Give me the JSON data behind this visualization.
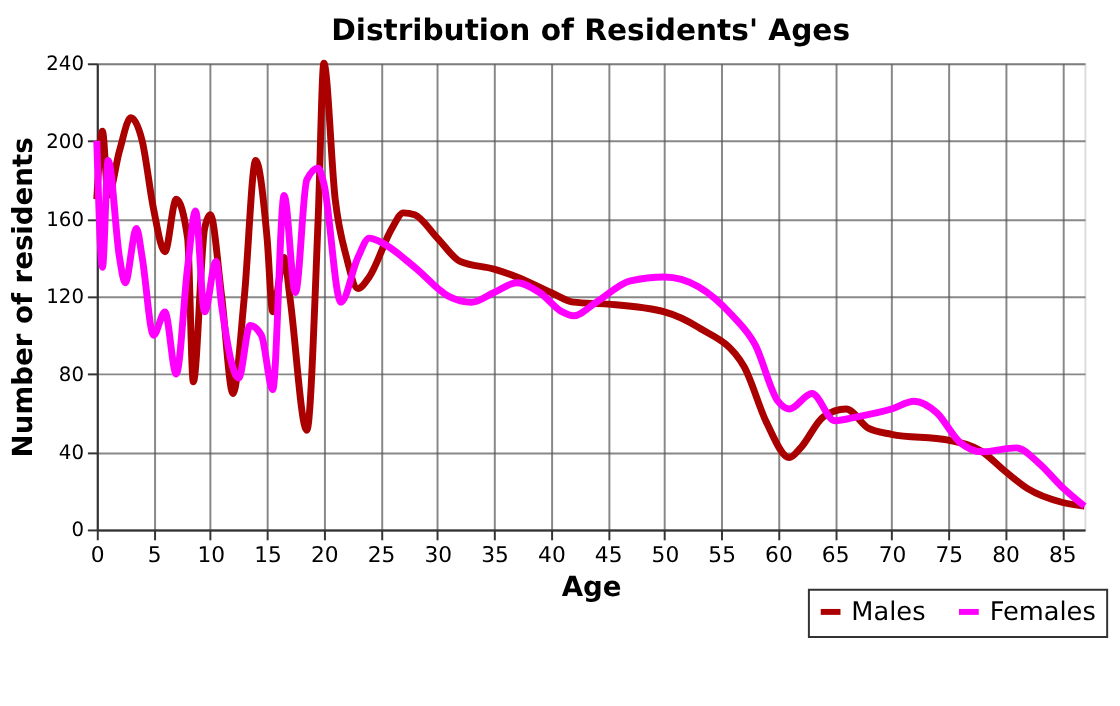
{
  "chart_data": {
    "type": "line",
    "title": "Distribution of Residents' Ages",
    "xlabel": "Age",
    "ylabel": "Number of residents",
    "xlim": [
      0,
      87
    ],
    "xticks": [
      0,
      5,
      10,
      15,
      20,
      25,
      30,
      35,
      40,
      45,
      50,
      55,
      60,
      65,
      70,
      75,
      80,
      85
    ],
    "ylim": [
      0,
      240
    ],
    "yticks": [
      0,
      40,
      80,
      120,
      160,
      200,
      240
    ],
    "grid": true,
    "legend": "bottom right",
    "line_style": "solid",
    "marker": "none",
    "series": [
      {
        "name": "Males",
        "color": "#aa0000",
        "x": [
          0,
          0.5,
          1,
          2,
          3,
          4,
          5,
          6,
          7,
          8,
          8.5,
          9.5,
          10,
          11,
          12,
          13,
          14,
          15,
          15.5,
          16.5,
          17,
          18.5,
          19.5,
          20,
          21,
          22,
          23,
          24,
          26,
          27,
          28,
          30,
          32,
          35,
          37,
          40,
          42,
          45,
          50,
          53,
          57,
          59,
          61,
          62,
          64,
          66,
          68,
          70,
          75,
          78,
          80,
          82,
          85,
          87
        ],
        "values": [
          170,
          205,
          172,
          195,
          212,
          200,
          165,
          143,
          170,
          150,
          76,
          155,
          162,
          120,
          70,
          120,
          190,
          150,
          112,
          140,
          120,
          51,
          160,
          240,
          170,
          140,
          124,
          130,
          155,
          163,
          162,
          150,
          138,
          134,
          130,
          122,
          117,
          116,
          112,
          104,
          84,
          55,
          37,
          42,
          58,
          62,
          52,
          49,
          46,
          40,
          30,
          21,
          14,
          12
        ]
      },
      {
        "name": "Females",
        "color": "#ff00ff",
        "x": [
          0,
          0.5,
          1,
          2,
          2.5,
          3.5,
          4,
          5,
          6,
          7,
          8,
          8.7,
          9.5,
          10.5,
          11,
          12.5,
          13.5,
          14.5,
          15.5,
          16.5,
          17.5,
          18.5,
          19.5,
          20,
          21.5,
          23,
          24,
          25,
          28,
          31,
          33,
          35,
          37,
          39,
          41,
          42,
          44,
          47,
          50,
          53,
          56,
          58,
          60,
          61,
          63,
          65,
          67,
          70,
          72,
          74,
          76,
          78,
          81,
          83,
          85,
          87
        ],
        "values": [
          200,
          135,
          190,
          140,
          127,
          155,
          140,
          100,
          112,
          80,
          135,
          164,
          112,
          138,
          115,
          78,
          105,
          100,
          72,
          172,
          122,
          180,
          186,
          178,
          117,
          140,
          150,
          148,
          135,
          120,
          117,
          122,
          127,
          122,
          112,
          110,
          117,
          128,
          130,
          125,
          110,
          95,
          66,
          62,
          70,
          56,
          58,
          62,
          66,
          60,
          45,
          40,
          42,
          34,
          22,
          12
        ]
      }
    ]
  }
}
